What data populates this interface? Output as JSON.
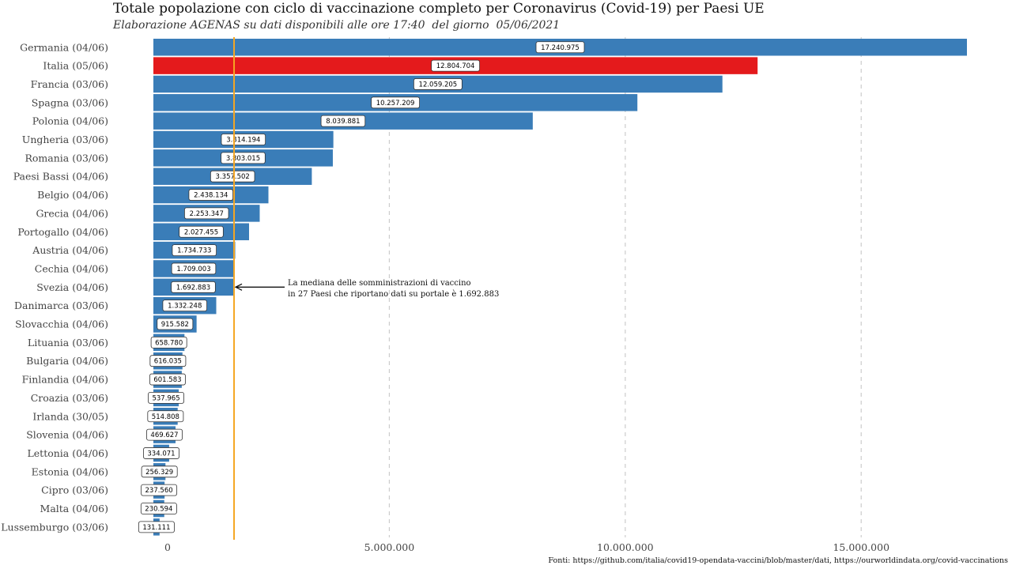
{
  "header": {
    "title": "Totale popolazione con ciclo di vaccinazione completo per Coronavirus (Covid-19) per Paesi UE",
    "subtitle": "Elaborazione AGENAS su dati disponibili alle ore 17:40  del giorno  05/06/2021"
  },
  "footer": {
    "source": "Fonti: https://github.com/italia/covid19-opendata-vaccini/blob/master/dati, https://ourworldindata.org/covid-vaccinations"
  },
  "colors": {
    "bar": "#3a7db8",
    "highlight": "#e41a1c",
    "median_line": "#f5a623",
    "grid": "#cccccc"
  },
  "chart_data": {
    "type": "bar",
    "orientation": "horizontal",
    "title": "Totale popolazione con ciclo di vaccinazione completo per Coronavirus (Covid-19) per Paesi UE",
    "subtitle": "Elaborazione AGENAS su dati disponibili alle ore 17:40  del giorno  05/06/2021",
    "xlabel": "",
    "ylabel": "",
    "xlim": [
      0,
      17500000
    ],
    "xticks": [
      0,
      5000000,
      10000000,
      15000000
    ],
    "xtick_labels": [
      "0",
      "5.000.000",
      "10.000.000",
      "15.000.000"
    ],
    "grid": "vertical dashed",
    "highlight_category": "Italia (05/06)",
    "categories": [
      "Germania (04/06)",
      "Italia (05/06)",
      "Francia (03/06)",
      "Spagna (03/06)",
      "Polonia (04/06)",
      "Ungheria (03/06)",
      "Romania (03/06)",
      "Paesi Bassi (04/06)",
      "Belgio (04/06)",
      "Grecia (04/06)",
      "Portogallo (04/06)",
      "Austria (04/06)",
      "Cechia (04/06)",
      "Svezia (04/06)",
      "Danimarca (03/06)",
      "Slovacchia (04/06)",
      "Lituania (03/06)",
      "Bulgaria (04/06)",
      "Finlandia (04/06)",
      "Croazia (03/06)",
      "Irlanda (30/05)",
      "Slovenia (04/06)",
      "Lettonia (04/06)",
      "Estonia (04/06)",
      "Cipro (03/06)",
      "Malta (04/06)",
      "Lussemburgo (03/06)"
    ],
    "values": [
      17240975,
      12804704,
      12059205,
      10257209,
      8039881,
      3814194,
      3803015,
      3357502,
      2438134,
      2253347,
      2027455,
      1734733,
      1709003,
      1692883,
      1332248,
      915582,
      658780,
      616035,
      601583,
      537965,
      514808,
      469627,
      334071,
      256329,
      237560,
      230594,
      131111
    ],
    "value_labels": [
      "17.240.975",
      "12.804.704",
      "12.059.205",
      "10.257.209",
      "8.039.881",
      "3.814.194",
      "3.803.015",
      "3.357.502",
      "2.438.134",
      "2.253.347",
      "2.027.455",
      "1.734.733",
      "1.709.003",
      "1.692.883",
      "1.332.248",
      "915.582",
      "658.780",
      "616.035",
      "601.583",
      "537.965",
      "514.808",
      "469.627",
      "334.071",
      "256.329",
      "237.560",
      "230.594",
      "131.111"
    ],
    "median": 1692883,
    "annotation": {
      "line1": "La mediana delle somministrazioni di vaccino",
      "line2": "in 27 Paesi che riportano dati su portale è 1.692.883"
    }
  }
}
